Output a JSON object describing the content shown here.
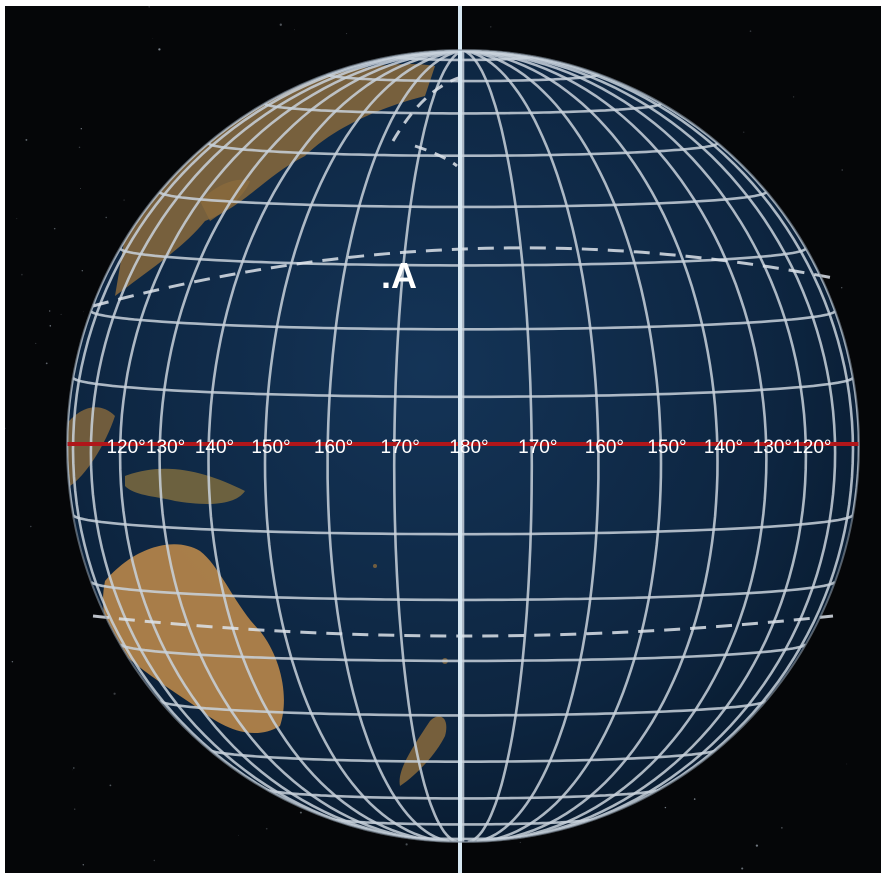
{
  "colors": {
    "space": "#050608",
    "ocean": "#0f2a45",
    "land": "#b9874a",
    "grid": "#c9d2dc",
    "equator": "#b0161a",
    "axis": "#d7e7f2",
    "label": "#ffffff"
  },
  "point_label": ".A",
  "equator_labels": {
    "left": [
      "120°",
      "130°",
      "140°",
      "150°",
      "160°",
      "170°"
    ],
    "center": "180°",
    "right": [
      "170°",
      "160°",
      "150°",
      "140°",
      "130°",
      "120°"
    ]
  },
  "globe": {
    "center_longitude": 180,
    "meridian_step_deg": 10,
    "parallel_step_deg": 10,
    "tropics_deg": 23.5,
    "axis_visible": true
  }
}
